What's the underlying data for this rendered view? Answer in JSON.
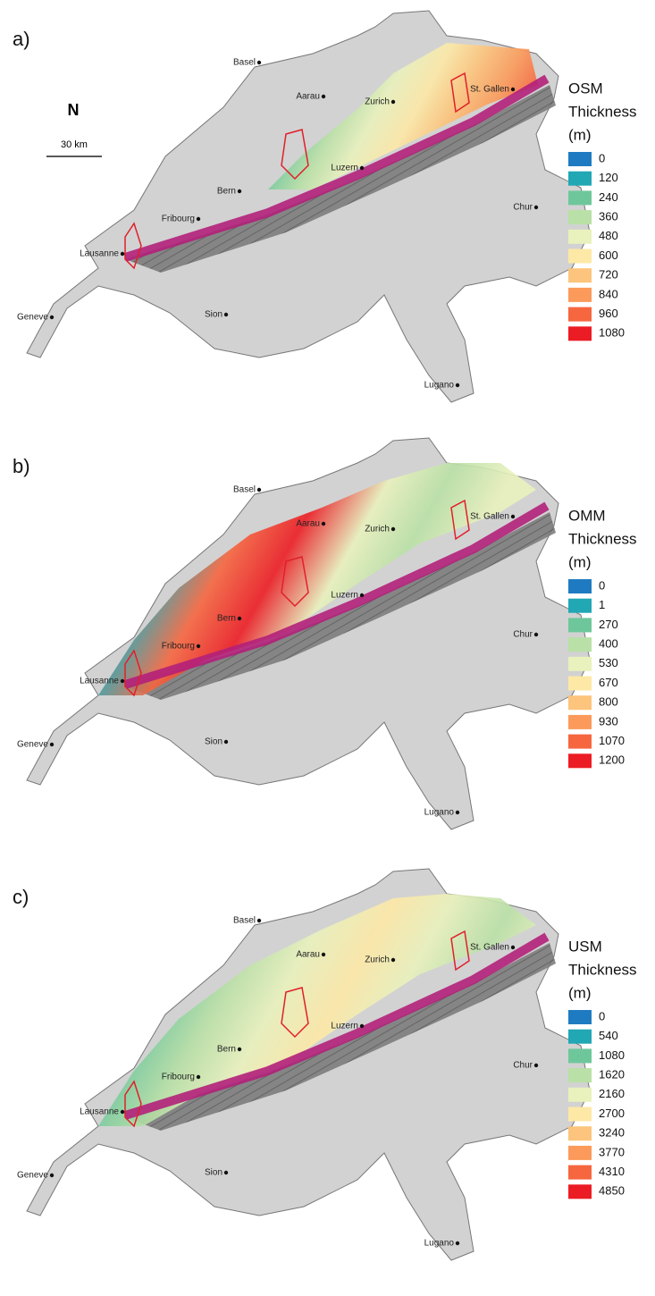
{
  "north": "N",
  "scale_bar": "30 km",
  "panels": [
    {
      "label": "a)",
      "legend": {
        "title": [
          "OSM",
          "Thickness",
          "(m)"
        ],
        "items": [
          0,
          120,
          240,
          360,
          480,
          600,
          720,
          840,
          960,
          1080
        ],
        "colors": [
          "#1f7bc1",
          "#22a7b4",
          "#6ec79b",
          "#b9e0a6",
          "#e9f1bd",
          "#fde8a6",
          "#fcc47c",
          "#fb9a5a",
          "#f6663f",
          "#ec1c24"
        ]
      },
      "cities": [
        "Basel",
        "Aarau",
        "Zurich",
        "St. Gallen",
        "Luzern",
        "Bern",
        "Fribourg",
        "Chur",
        "Lausanne",
        "Geneve",
        "Sion",
        "Lugano"
      ]
    },
    {
      "label": "b)",
      "legend": {
        "title": [
          "OMM",
          "Thickness",
          "(m)"
        ],
        "items": [
          0,
          1,
          270,
          400,
          530,
          670,
          800,
          930,
          1070,
          1200
        ],
        "colors": [
          "#1f7bc1",
          "#22a7b4",
          "#6ec79b",
          "#b9e0a6",
          "#e9f1bd",
          "#fde8a6",
          "#fcc47c",
          "#fb9a5a",
          "#f6663f",
          "#ec1c24"
        ]
      },
      "cities": [
        "Basel",
        "Aarau",
        "Zurich",
        "St. Gallen",
        "Luzern",
        "Bern",
        "Fribourg",
        "Chur",
        "Lausanne",
        "Geneve",
        "Sion",
        "Lugano"
      ]
    },
    {
      "label": "c)",
      "legend": {
        "title": [
          "USM",
          "Thickness",
          "(m)"
        ],
        "items": [
          0,
          540,
          1080,
          1620,
          2160,
          2700,
          3240,
          3770,
          4310,
          4850
        ],
        "colors": [
          "#1f7bc1",
          "#22a7b4",
          "#6ec79b",
          "#b9e0a6",
          "#e9f1bd",
          "#fde8a6",
          "#fcc47c",
          "#fb9a5a",
          "#f6663f",
          "#ec1c24"
        ]
      },
      "cities": [
        "Basel",
        "Aarau",
        "Zurich",
        "St. Gallen",
        "Luzern",
        "Bern",
        "Fribourg",
        "Chur",
        "Lausanne",
        "Geneve",
        "Sion",
        "Lugano"
      ]
    }
  ]
}
